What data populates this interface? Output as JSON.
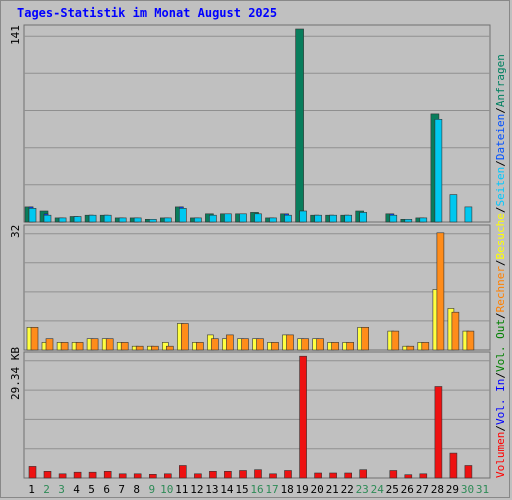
{
  "title": "Tages-Statistik im Monat August 2025",
  "panel_labels": {
    "top": "141",
    "middle": "32",
    "bottom": "29.34 KB"
  },
  "legend": [
    {
      "text": "Volumen",
      "color": "#ff0000"
    },
    {
      "text": "/",
      "color": "#000000"
    },
    {
      "text": "Vol. In",
      "color": "#0000ff"
    },
    {
      "text": "/",
      "color": "#000000"
    },
    {
      "text": "Vol. Out",
      "color": "#008000"
    },
    {
      "text": "/",
      "color": "#000000"
    },
    {
      "text": "Rechner",
      "color": "#ff8000"
    },
    {
      "text": "/",
      "color": "#000000"
    },
    {
      "text": "Besuche",
      "color": "#ffff00"
    },
    {
      "text": "/",
      "color": "#000000"
    },
    {
      "text": "Seiten",
      "color": "#00c8ff"
    },
    {
      "text": "/",
      "color": "#000000"
    },
    {
      "text": "Dateien",
      "color": "#0050ff"
    },
    {
      "text": "/",
      "color": "#000000"
    },
    {
      "text": "Anfragen",
      "color": "#008060"
    }
  ],
  "colors": {
    "anfragen": "#087d5c",
    "dateien": "#0040ff",
    "seiten": "#00c8f0",
    "besuche": "#ffff40",
    "rechner": "#ff8c1a",
    "volumen": "#ee1111",
    "weekend_label": "#2e8b57",
    "weekday_label": "#000000"
  },
  "chart_data": {
    "type": "bar",
    "title": "Tages-Statistik im Monat August 2025",
    "categories": [
      "1",
      "2",
      "3",
      "4",
      "5",
      "6",
      "7",
      "8",
      "9",
      "10",
      "11",
      "12",
      "13",
      "14",
      "15",
      "16",
      "17",
      "18",
      "19",
      "20",
      "21",
      "22",
      "23",
      "24",
      "25",
      "26",
      "27",
      "28",
      "29",
      "30",
      "31"
    ],
    "weekend_days": [
      "2",
      "3",
      "9",
      "10",
      "16",
      "17",
      "23",
      "24",
      "30",
      "31"
    ],
    "panels": [
      {
        "name": "top",
        "ymax": 141,
        "series": [
          {
            "name": "Anfragen",
            "values": [
              11,
              8,
              3,
              4,
              5,
              5,
              3,
              3,
              2,
              3,
              11,
              3,
              6,
              6,
              6,
              7,
              3,
              6,
              141,
              5,
              5,
              5,
              8,
              0,
              6,
              2,
              3,
              79,
              0,
              0,
              0
            ]
          },
          {
            "name": "Dateien",
            "values": [
              11,
              6,
              3,
              4,
              5,
              5,
              3,
              3,
              2,
              3,
              11,
              3,
              5,
              3,
              6,
              5,
              3,
              6,
              8,
              5,
              5,
              5,
              7,
              0,
              6,
              2,
              3,
              14,
              0,
              0,
              0
            ]
          },
          {
            "name": "Seiten",
            "values": [
              10,
              5,
              3,
              4,
              5,
              5,
              3,
              3,
              2,
              3,
              10,
              3,
              5,
              6,
              6,
              6,
              3,
              5,
              8,
              5,
              5,
              5,
              7,
              0,
              5,
              2,
              3,
              75,
              20,
              11,
              0
            ]
          }
        ]
      },
      {
        "name": "middle",
        "ymax": 32,
        "series": [
          {
            "name": "Besuche",
            "values": [
              6,
              2,
              2,
              2,
              3,
              3,
              2,
              1,
              1,
              2,
              7,
              2,
              4,
              3,
              3,
              3,
              2,
              4,
              3,
              3,
              2,
              2,
              6,
              0,
              5,
              1,
              2,
              16,
              11,
              5,
              0
            ]
          },
          {
            "name": "Rechner",
            "values": [
              6,
              3,
              2,
              2,
              3,
              3,
              2,
              1,
              1,
              1,
              7,
              2,
              3,
              4,
              3,
              3,
              2,
              4,
              3,
              3,
              2,
              2,
              6,
              0,
              5,
              1,
              2,
              31,
              10,
              5,
              0
            ]
          }
        ]
      },
      {
        "name": "bottom",
        "ymax": 29.34,
        "series": [
          {
            "name": "Volumen",
            "values": [
              2.8,
              1.6,
              1.0,
              1.4,
              1.4,
              1.6,
              1.0,
              1.0,
              0.9,
              1.0,
              3.0,
              1.0,
              1.6,
              1.6,
              1.8,
              2.0,
              1.0,
              1.8,
              29.3,
              1.2,
              1.2,
              1.2,
              2.0,
              0,
              1.8,
              0.8,
              1.0,
              22.0,
              6.0,
              3.0,
              0
            ]
          }
        ]
      }
    ]
  }
}
